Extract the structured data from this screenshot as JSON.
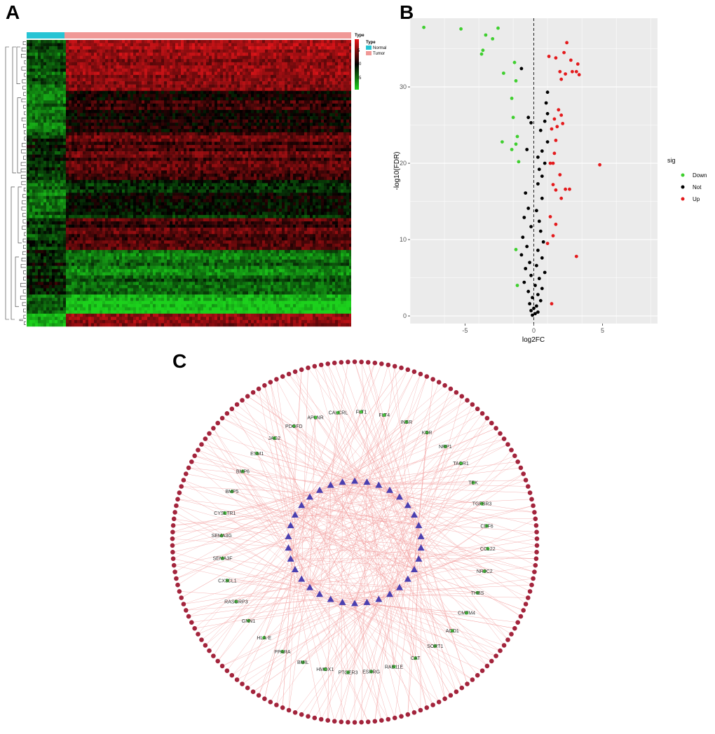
{
  "panel_labels": {
    "a": "A",
    "b": "B",
    "c": "C"
  },
  "colors": {
    "normal": "#27c4d4",
    "tumor": "#f09896",
    "heat_high": "#e8151a",
    "heat_mid": "#000000",
    "heat_low": "#1cd11c",
    "down": "#3fcf2f",
    "not": "#000000",
    "up": "#e41a1c",
    "volcano_bg": "#ebebeb",
    "gene_node": "#44c23a",
    "lnc_node": "#4a3fb0",
    "outer_node": "#a3243c",
    "edge": "#f3a0a0"
  },
  "chart_data": [
    {
      "type": "heatmap",
      "legend_title": "Type",
      "groups": [
        "Normal",
        "Tumor"
      ],
      "colorbar_ticks": [
        "5",
        "0",
        "-5"
      ],
      "color_range": [
        -5,
        5
      ]
    },
    {
      "type": "scatter",
      "title": "",
      "xlabel": "log2FC",
      "ylabel": "-log10(FDR)",
      "xlim": [
        -9,
        9
      ],
      "ylim": [
        -1,
        39
      ],
      "xticks": [
        -5,
        0,
        5
      ],
      "yticks": [
        0,
        10,
        20,
        30
      ],
      "legend_title": "sig",
      "series": [
        {
          "name": "Down",
          "points": [
            [
              -8.0,
              37.8
            ],
            [
              -5.3,
              37.6
            ],
            [
              -3.5,
              36.8
            ],
            [
              -3.0,
              36.3
            ],
            [
              -2.6,
              37.7
            ],
            [
              -3.8,
              34.3
            ],
            [
              -3.7,
              34.8
            ],
            [
              -1.4,
              33.2
            ],
            [
              -2.2,
              31.8
            ],
            [
              -1.3,
              30.8
            ],
            [
              -1.6,
              28.5
            ],
            [
              -1.5,
              26.0
            ],
            [
              -2.3,
              22.8
            ],
            [
              -1.2,
              23.5
            ],
            [
              -1.6,
              21.8
            ],
            [
              -1.3,
              22.5
            ],
            [
              -1.1,
              20.2
            ],
            [
              -1.3,
              8.7
            ],
            [
              -1.2,
              4.0
            ]
          ]
        },
        {
          "name": "Not",
          "points": [
            [
              -0.9,
              32.4
            ],
            [
              -0.4,
              26.0
            ],
            [
              -0.2,
              25.3
            ],
            [
              -0.5,
              21.8
            ],
            [
              1.0,
              29.3
            ],
            [
              0.9,
              27.9
            ],
            [
              1.0,
              26.5
            ],
            [
              0.8,
              25.5
            ],
            [
              0.5,
              24.3
            ],
            [
              1.0,
              22.8
            ],
            [
              0.6,
              21.6
            ],
            [
              0.3,
              20.8
            ],
            [
              0.8,
              20.0
            ],
            [
              0.4,
              19.2
            ],
            [
              0.6,
              18.3
            ],
            [
              0.3,
              17.3
            ],
            [
              -0.6,
              16.1
            ],
            [
              0.6,
              15.4
            ],
            [
              -0.4,
              14.1
            ],
            [
              0.2,
              13.8
            ],
            [
              -0.7,
              12.9
            ],
            [
              0.4,
              12.4
            ],
            [
              -0.2,
              11.7
            ],
            [
              0.5,
              11.1
            ],
            [
              -0.8,
              10.3
            ],
            [
              0.7,
              9.7
            ],
            [
              -0.5,
              9.1
            ],
            [
              0.3,
              8.6
            ],
            [
              -0.9,
              8.0
            ],
            [
              0.6,
              7.6
            ],
            [
              -0.3,
              7.0
            ],
            [
              0.2,
              6.6
            ],
            [
              -0.6,
              6.2
            ],
            [
              0.8,
              5.7
            ],
            [
              -0.2,
              5.3
            ],
            [
              0.4,
              4.9
            ],
            [
              -0.7,
              4.4
            ],
            [
              0.1,
              4.0
            ],
            [
              0.6,
              3.6
            ],
            [
              -0.4,
              3.2
            ],
            [
              0.3,
              2.8
            ],
            [
              -0.1,
              2.4
            ],
            [
              0.5,
              2.0
            ],
            [
              -0.3,
              1.6
            ],
            [
              0.2,
              1.3
            ],
            [
              0.0,
              1.0
            ],
            [
              -0.2,
              0.7
            ],
            [
              0.3,
              0.5
            ],
            [
              0.1,
              0.3
            ],
            [
              -0.1,
              0.1
            ]
          ]
        },
        {
          "name": "Up",
          "points": [
            [
              2.4,
              35.8
            ],
            [
              2.2,
              34.5
            ],
            [
              1.6,
              33.8
            ],
            [
              2.7,
              33.5
            ],
            [
              3.2,
              33.0
            ],
            [
              1.9,
              32.0
            ],
            [
              2.3,
              31.7
            ],
            [
              2.8,
              32.0
            ],
            [
              3.1,
              32.0
            ],
            [
              3.3,
              31.6
            ],
            [
              1.1,
              34.0
            ],
            [
              2.0,
              31.0
            ],
            [
              1.8,
              27.0
            ],
            [
              2.0,
              26.3
            ],
            [
              2.1,
              25.2
            ],
            [
              1.5,
              25.8
            ],
            [
              1.7,
              24.8
            ],
            [
              1.3,
              24.5
            ],
            [
              1.6,
              23.0
            ],
            [
              1.5,
              21.3
            ],
            [
              1.2,
              20.0
            ],
            [
              1.4,
              20.0
            ],
            [
              1.9,
              18.5
            ],
            [
              1.4,
              17.2
            ],
            [
              2.3,
              16.6
            ],
            [
              2.0,
              15.4
            ],
            [
              2.6,
              16.6
            ],
            [
              1.6,
              16.5
            ],
            [
              1.2,
              13.0
            ],
            [
              1.6,
              12.0
            ],
            [
              1.4,
              10.5
            ],
            [
              1.0,
              9.5
            ],
            [
              3.1,
              7.8
            ],
            [
              4.8,
              19.8
            ],
            [
              1.3,
              1.6
            ]
          ]
        }
      ]
    },
    {
      "type": "network",
      "mid_ring_genes": [
        "FLT1",
        "FLT4",
        "INSR",
        "KDR",
        "NRP1",
        "TACR1",
        "TEK",
        "TGFBR3",
        "CDF6",
        "CCL22",
        "NR3C2",
        "THBS",
        "CMTM4",
        "ACO1",
        "SORT1",
        "CAT",
        "RAB11E",
        "ESRRG",
        "PTGER3",
        "HMOX1",
        "BMIL",
        "PPARA",
        "HLA-E",
        "GNN1",
        "RASGRP3",
        "CX3CL1",
        "SEMA3F",
        "SEMA3G",
        "CYSLTR1",
        "BMP5",
        "BMP6",
        "ESM1",
        "JAG2",
        "PDGFD",
        "APLNR",
        "CALCRL"
      ],
      "inner_count": 34,
      "outer_count": 170
    }
  ]
}
